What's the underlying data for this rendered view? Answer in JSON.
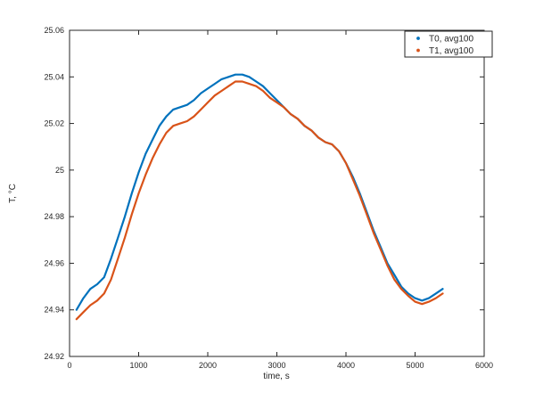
{
  "figure": {
    "background": "#FFFFFF",
    "axis_color": "#262626"
  },
  "chart_data": {
    "type": "line",
    "title": "",
    "xlabel": "time, s",
    "ylabel": "T, °C",
    "xlim": [
      0,
      6000
    ],
    "ylim": [
      24.92,
      25.06
    ],
    "xticks": [
      0,
      1000,
      2000,
      3000,
      4000,
      5000,
      6000
    ],
    "xtick_labels": [
      "0",
      "1000",
      "2000",
      "3000",
      "4000",
      "5000",
      "6000"
    ],
    "yticks": [
      24.92,
      24.94,
      24.96,
      24.98,
      25,
      25.02,
      25.04,
      25.06
    ],
    "ytick_labels": [
      "24.92",
      "24.94",
      "24.96",
      "24.98",
      "25",
      "25.02",
      "25.04",
      "25.06"
    ],
    "grid": false,
    "legend_position": "northeast",
    "x": [
      100,
      200,
      300,
      400,
      500,
      600,
      700,
      800,
      900,
      1000,
      1100,
      1200,
      1300,
      1400,
      1500,
      1600,
      1700,
      1800,
      1900,
      2000,
      2100,
      2200,
      2300,
      2400,
      2500,
      2600,
      2700,
      2800,
      2900,
      3000,
      3100,
      3200,
      3300,
      3400,
      3500,
      3600,
      3700,
      3800,
      3900,
      4000,
      4100,
      4200,
      4300,
      4400,
      4500,
      4600,
      4700,
      4800,
      4900,
      5000,
      5100,
      5200,
      5300,
      5400
    ],
    "series": [
      {
        "name": "T0, avg100",
        "color": "#0072BD",
        "marker": "dot",
        "values": [
          24.94,
          24.945,
          24.949,
          24.951,
          24.954,
          24.962,
          24.971,
          24.98,
          24.99,
          24.999,
          25.007,
          25.013,
          25.019,
          25.023,
          25.026,
          25.027,
          25.028,
          25.03,
          25.033,
          25.035,
          25.037,
          25.039,
          25.04,
          25.041,
          25.041,
          25.04,
          25.038,
          25.036,
          25.033,
          25.03,
          25.027,
          25.024,
          25.022,
          25.019,
          25.017,
          25.014,
          25.012,
          25.011,
          25.008,
          25.003,
          24.997,
          24.99,
          24.982,
          24.974,
          24.967,
          24.96,
          24.955,
          24.95,
          24.947,
          24.945,
          24.944,
          24.945,
          24.947,
          24.949
        ]
      },
      {
        "name": "T1, avg100",
        "color": "#D95319",
        "marker": "dot",
        "values": [
          24.936,
          24.939,
          24.942,
          24.944,
          24.947,
          24.953,
          24.962,
          24.971,
          24.981,
          24.99,
          24.998,
          25.005,
          25.011,
          25.016,
          25.019,
          25.02,
          25.021,
          25.023,
          25.026,
          25.029,
          25.032,
          25.034,
          25.036,
          25.038,
          25.038,
          25.037,
          25.036,
          25.034,
          25.031,
          25.029,
          25.027,
          25.024,
          25.022,
          25.019,
          25.017,
          25.014,
          25.012,
          25.011,
          25.008,
          25.003,
          24.996,
          24.989,
          24.981,
          24.973,
          24.966,
          24.959,
          24.953,
          24.949,
          24.946,
          24.9435,
          24.9425,
          24.9435,
          24.945,
          24.947
        ]
      }
    ]
  }
}
